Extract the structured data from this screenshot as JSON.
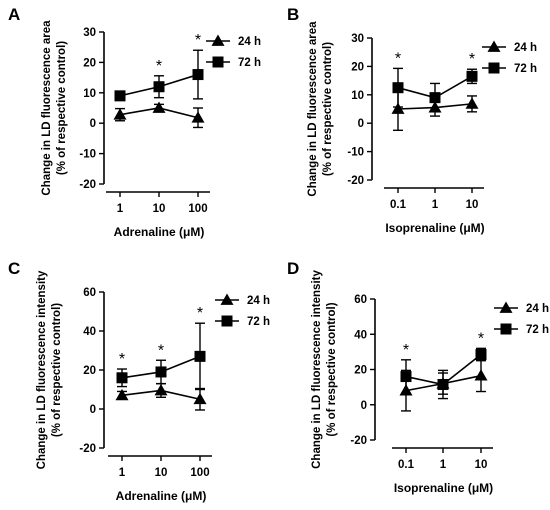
{
  "figure": {
    "legend_labels": [
      "24 h",
      "72 h"
    ],
    "significance_marker": "*"
  },
  "chart_data": [
    {
      "panel": "A",
      "type": "line",
      "ylabel": "Change in LD fluorescence area",
      "ylabel2": "(% of respective control)",
      "xlabel": "Adrenaline (μM)",
      "categories": [
        "1",
        "10",
        "100"
      ],
      "yticks": [
        -20,
        -10,
        0,
        10,
        20,
        30
      ],
      "ylim": [
        -20,
        30
      ],
      "legend_position": "top-right",
      "series": [
        {
          "name": "24 h",
          "marker": "triangle",
          "values": [
            2.8,
            5.0,
            1.8
          ],
          "errors": [
            2.0,
            1.2,
            3.2
          ]
        },
        {
          "name": "72 h",
          "marker": "square",
          "values": [
            9.0,
            12.0,
            16.0
          ],
          "errors": [
            1.5,
            3.6,
            8.0
          ]
        }
      ],
      "significant": [
        "10",
        "100"
      ]
    },
    {
      "panel": "B",
      "type": "line",
      "ylabel": "Change in LD fluorescence area",
      "ylabel2": "(% of respective control)",
      "xlabel": "Isoprenaline (μM)",
      "categories": [
        "0.1",
        "1",
        "10"
      ],
      "yticks": [
        -20,
        -10,
        0,
        10,
        20,
        30
      ],
      "ylim": [
        -20,
        30
      ],
      "legend_position": "top-right",
      "series": [
        {
          "name": "24 h",
          "marker": "triangle",
          "values": [
            5.0,
            5.5,
            6.8
          ],
          "errors": [
            7.5,
            3.0,
            2.8
          ]
        },
        {
          "name": "72 h",
          "marker": "square",
          "values": [
            12.5,
            9.0,
            16.5
          ],
          "errors": [
            6.8,
            5.0,
            2.5
          ]
        }
      ],
      "significant": [
        "0.1",
        "10"
      ]
    },
    {
      "panel": "C",
      "type": "line",
      "ylabel": "Change in LD fluorescence intensity",
      "ylabel2": "(% of respective control)",
      "xlabel": "Adrenaline (μM)",
      "categories": [
        "1",
        "10",
        "100"
      ],
      "yticks": [
        -20,
        0,
        20,
        40,
        60
      ],
      "ylim": [
        -20,
        60
      ],
      "legend_position": "top-right",
      "series": [
        {
          "name": "24 h",
          "marker": "triangle",
          "values": [
            7.0,
            9.5,
            5.0
          ],
          "errors": [
            2.0,
            3.5,
            5.5
          ]
        },
        {
          "name": "72 h",
          "marker": "square",
          "values": [
            16.0,
            19.0,
            27.0
          ],
          "errors": [
            4.5,
            6.0,
            17.0
          ]
        }
      ],
      "significant": [
        "1",
        "10",
        "100"
      ]
    },
    {
      "panel": "D",
      "type": "line",
      "ylabel": "Change in LD fluorescence intensity",
      "ylabel2": "(% of respective control)",
      "xlabel": "Isoprenaline (μM)",
      "categories": [
        "0.1",
        "1",
        "10"
      ],
      "yticks": [
        -20,
        0,
        20,
        40,
        60
      ],
      "ylim": [
        -20,
        60
      ],
      "legend_position": "top-right",
      "series": [
        {
          "name": "24 h",
          "marker": "triangle",
          "values": [
            8.0,
            12.0,
            16.5
          ],
          "errors": [
            11.5,
            6.0,
            9.0
          ]
        },
        {
          "name": "72 h",
          "marker": "square",
          "values": [
            16.0,
            11.5,
            28.5
          ],
          "errors": [
            9.5,
            8.0,
            3.5
          ]
        }
      ],
      "significant": [
        "0.1",
        "10"
      ]
    }
  ]
}
